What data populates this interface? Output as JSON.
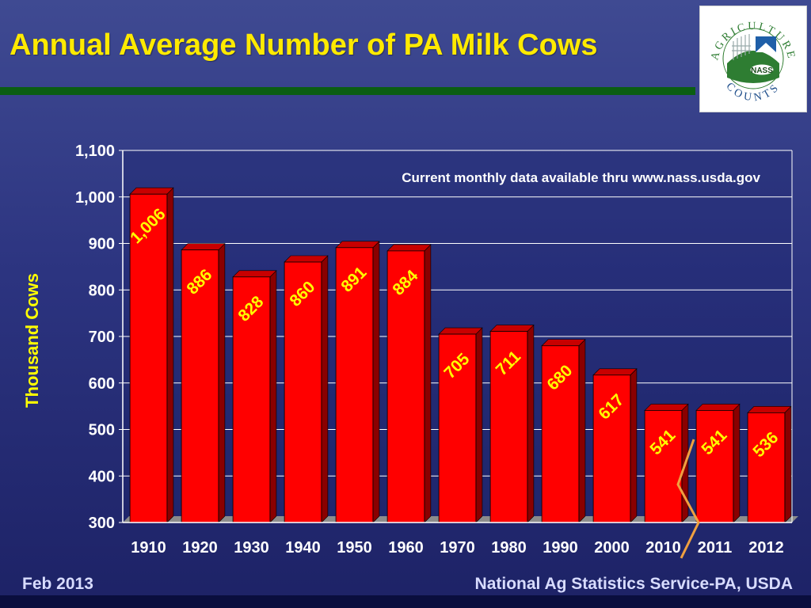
{
  "slide": {
    "title": "Annual Average Number of PA Milk Cows",
    "footer_left": "Feb 2013",
    "footer_right": "National Ag Statistics Service-PA, USDA"
  },
  "logo": {
    "top_text": "AGRICULTURE",
    "bottom_text": "COUNTS",
    "badge_text": "NASS"
  },
  "colors": {
    "background": "#2c3480",
    "title": "#ffea00",
    "rule": "#0b5e12",
    "bar": "#ff0000",
    "bar_side": "#8a0000",
    "bar_top": "#c80000",
    "label_light": "#ffff00",
    "label_dark": "#ffff00",
    "axis_text": "#ffffff",
    "ylabel": "#ffff00",
    "break_line": "#f0a040"
  },
  "chart_data": {
    "type": "bar",
    "categories": [
      "1910",
      "1920",
      "1930",
      "1940",
      "1950",
      "1960",
      "1970",
      "1980",
      "1990",
      "2000",
      "2010",
      "2011",
      "2012"
    ],
    "values": [
      1006,
      886,
      828,
      860,
      891,
      884,
      705,
      711,
      680,
      617,
      541,
      541,
      536
    ],
    "data_labels": [
      "1,006",
      "886",
      "828",
      "860",
      "891",
      "884",
      "705",
      "711",
      "680",
      "617",
      "541",
      "541",
      "536"
    ],
    "ylabel": "Thousand Cows",
    "xlabel": "",
    "ylim": [
      300,
      1100
    ],
    "yticks": [
      300,
      400,
      500,
      600,
      700,
      800,
      900,
      1000,
      1100
    ],
    "ytick_labels": [
      "300",
      "400",
      "500",
      "600",
      "700",
      "800",
      "900",
      "1,000",
      "1,100"
    ],
    "grid": true,
    "three_d": true,
    "annotation": "Current monthly data available thru www.nass.usda.gov",
    "axis_break_between": [
      "2010",
      "2011"
    ]
  }
}
